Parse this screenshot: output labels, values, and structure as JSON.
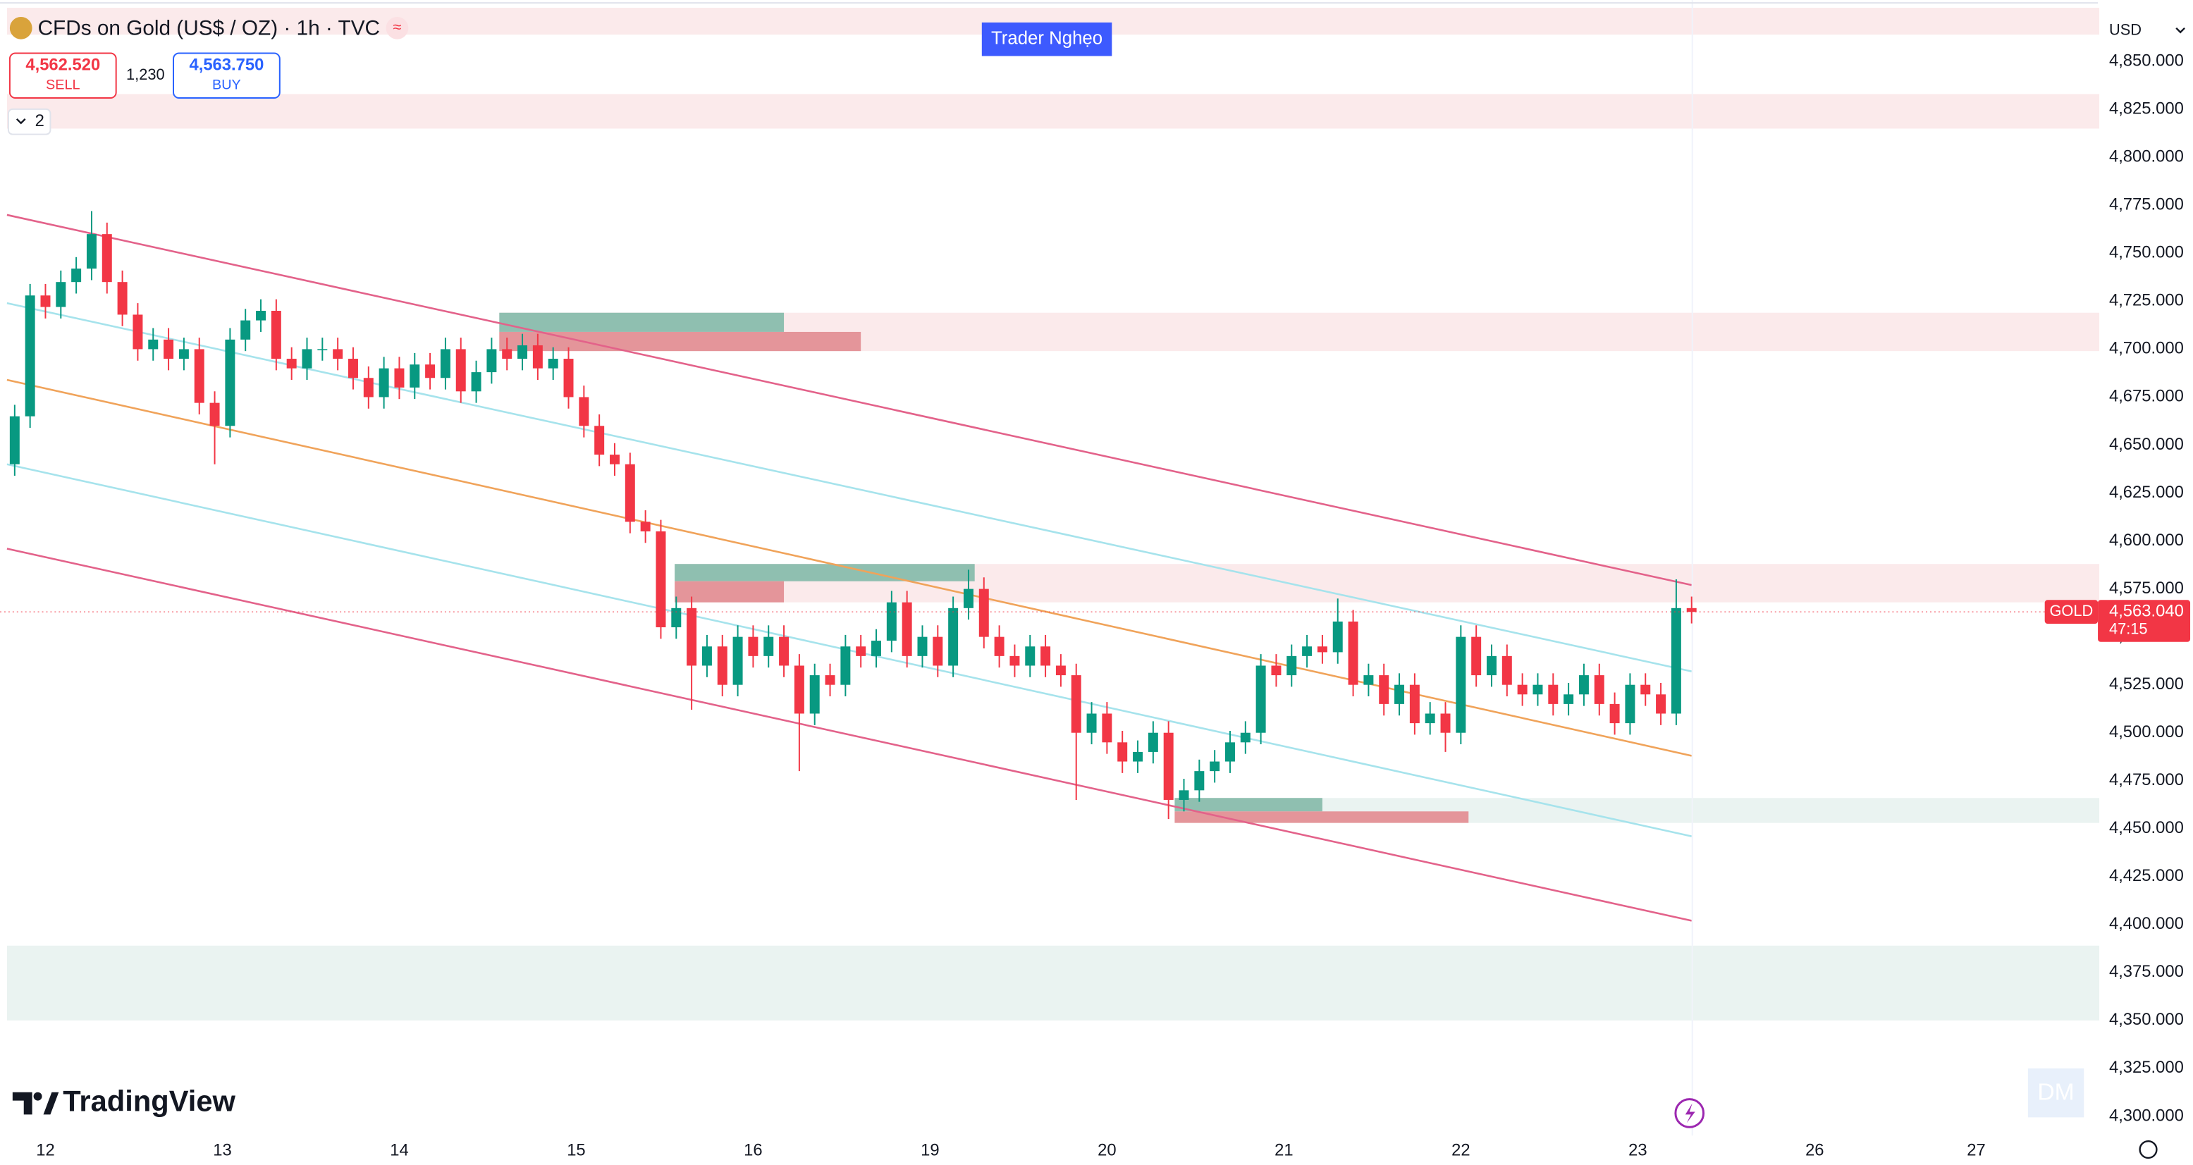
{
  "header": {
    "symbol": "CFDs on Gold (US$ / OZ) · 1h · TVC",
    "sell_price": "4,562.520",
    "sell_label": "SELL",
    "spread": "1,230",
    "buy_price": "4,563.750",
    "buy_label": "BUY",
    "indicators_count": "2"
  },
  "watermark": "Trader Nghẹo",
  "currency": "USD",
  "brand": "TradingView",
  "badge": "DM",
  "chart_data": {
    "type": "candlestick",
    "up_color": "#089981",
    "down_color": "#f23645",
    "grid": false,
    "open": [
      4640,
      4665,
      4728,
      4722,
      4735,
      4742,
      4760,
      4735,
      4718,
      4700,
      4705,
      4695,
      4700,
      4672,
      4660,
      4705,
      4715,
      4720,
      4695,
      4690,
      4700,
      4700,
      4695,
      4685,
      4675,
      4690,
      4680,
      4692,
      4685,
      4700,
      4678,
      4688,
      4700,
      4695,
      4702,
      4690,
      4695,
      4675,
      4660,
      4645,
      4640,
      4610,
      4605,
      4555,
      4565,
      4535,
      4545,
      4525,
      4550,
      4540,
      4550,
      4535,
      4510,
      4530,
      4525,
      4545,
      4540,
      4548,
      4568,
      4540,
      4550,
      4535,
      4565,
      4575,
      4550,
      4540,
      4535,
      4545,
      4535,
      4530,
      4500,
      4510,
      4495,
      4485,
      4490,
      4500,
      4465,
      4470,
      4480,
      4485,
      4495,
      4500,
      4535,
      4530,
      4540,
      4545,
      4542,
      4558,
      4525,
      4530,
      4515,
      4525,
      4505,
      4510,
      4500,
      4550,
      4530,
      4540,
      4525,
      4520,
      4525,
      4515,
      4520,
      4530,
      4515,
      4505,
      4525,
      4520,
      4510,
      4565
    ],
    "high": [
      4671,
      4734,
      4734,
      4741,
      4748,
      4772,
      4766,
      4741,
      4724,
      4711,
      4711,
      4706,
      4706,
      4678,
      4711,
      4721,
      4726,
      4726,
      4701,
      4706,
      4706,
      4706,
      4701,
      4691,
      4696,
      4696,
      4698,
      4698,
      4706,
      4706,
      4694,
      4706,
      4706,
      4708,
      4708,
      4701,
      4701,
      4681,
      4666,
      4651,
      4646,
      4616,
      4611,
      4571,
      4571,
      4551,
      4551,
      4556,
      4556,
      4556,
      4556,
      4541,
      4536,
      4536,
      4551,
      4551,
      4554,
      4574,
      4574,
      4556,
      4556,
      4571,
      4585,
      4581,
      4556,
      4546,
      4551,
      4551,
      4541,
      4536,
      4516,
      4516,
      4501,
      4496,
      4506,
      4506,
      4476,
      4486,
      4491,
      4501,
      4506,
      4541,
      4541,
      4546,
      4551,
      4551,
      4570,
      4564,
      4536,
      4536,
      4531,
      4531,
      4516,
      4516,
      4556,
      4556,
      4546,
      4546,
      4531,
      4531,
      4531,
      4526,
      4536,
      4536,
      4521,
      4531,
      4531,
      4526,
      4580,
      4571
    ],
    "low": [
      4634,
      4659,
      4716,
      4716,
      4729,
      4736,
      4729,
      4712,
      4694,
      4694,
      4689,
      4689,
      4666,
      4640,
      4654,
      4699,
      4709,
      4689,
      4684,
      4684,
      4694,
      4689,
      4679,
      4669,
      4669,
      4674,
      4674,
      4679,
      4679,
      4672,
      4672,
      4682,
      4689,
      4689,
      4684,
      4684,
      4669,
      4654,
      4639,
      4634,
      4604,
      4599,
      4549,
      4549,
      4512,
      4529,
      4519,
      4519,
      4534,
      4534,
      4529,
      4480,
      4504,
      4519,
      4519,
      4534,
      4534,
      4542,
      4534,
      4534,
      4529,
      4529,
      4559,
      4544,
      4534,
      4529,
      4529,
      4529,
      4524,
      4465,
      4494,
      4489,
      4479,
      4479,
      4484,
      4455,
      4459,
      4464,
      4474,
      4479,
      4489,
      4494,
      4524,
      4524,
      4534,
      4536,
      4536,
      4519,
      4519,
      4509,
      4509,
      4499,
      4499,
      4490,
      4494,
      4524,
      4524,
      4519,
      4514,
      4514,
      4509,
      4509,
      4514,
      4509,
      4499,
      4499,
      4514,
      4504,
      4504,
      4557
    ],
    "close": [
      4665,
      4728,
      4722,
      4735,
      4742,
      4760,
      4735,
      4718,
      4700,
      4705,
      4695,
      4700,
      4672,
      4660,
      4705,
      4715,
      4720,
      4695,
      4690,
      4700,
      4700,
      4695,
      4685,
      4675,
      4690,
      4680,
      4692,
      4685,
      4700,
      4678,
      4688,
      4700,
      4695,
      4702,
      4690,
      4695,
      4675,
      4660,
      4645,
      4640,
      4610,
      4605,
      4555,
      4565,
      4535,
      4545,
      4525,
      4550,
      4540,
      4550,
      4535,
      4510,
      4530,
      4525,
      4545,
      4540,
      4548,
      4568,
      4540,
      4550,
      4535,
      4565,
      4575,
      4550,
      4540,
      4535,
      4545,
      4535,
      4530,
      4500,
      4510,
      4495,
      4485,
      4490,
      4500,
      4465,
      4470,
      4480,
      4485,
      4495,
      4500,
      4535,
      4530,
      4540,
      4545,
      4542,
      4558,
      4525,
      4530,
      4515,
      4525,
      4505,
      4510,
      4500,
      4550,
      4530,
      4540,
      4525,
      4520,
      4525,
      4515,
      4520,
      4530,
      4515,
      4505,
      4525,
      4520,
      4510,
      4565,
      4563
    ],
    "xlim": [
      0,
      136
    ],
    "xticks": [
      {
        "value": 2.5,
        "label": "12"
      },
      {
        "value": 14,
        "label": "13"
      },
      {
        "value": 25.5,
        "label": "14"
      },
      {
        "value": 37,
        "label": "15"
      },
      {
        "value": 48.5,
        "label": "16"
      },
      {
        "value": 60,
        "label": "19"
      },
      {
        "value": 71.5,
        "label": "20"
      },
      {
        "value": 83,
        "label": "21"
      },
      {
        "value": 94.5,
        "label": "22"
      },
      {
        "value": 106,
        "label": "23"
      },
      {
        "value": 117.5,
        "label": "26"
      },
      {
        "value": 128,
        "label": "27"
      }
    ],
    "ylim": [
      4290,
      4882
    ],
    "yticks": [
      {
        "value": 4850,
        "label": "4,850.000"
      },
      {
        "value": 4825,
        "label": "4,825.000"
      },
      {
        "value": 4800,
        "label": "4,800.000"
      },
      {
        "value": 4775,
        "label": "4,775.000"
      },
      {
        "value": 4750,
        "label": "4,750.000"
      },
      {
        "value": 4725,
        "label": "4,725.000"
      },
      {
        "value": 4700,
        "label": "4,700.000"
      },
      {
        "value": 4675,
        "label": "4,675.000"
      },
      {
        "value": 4650,
        "label": "4,650.000"
      },
      {
        "value": 4625,
        "label": "4,625.000"
      },
      {
        "value": 4600,
        "label": "4,600.000"
      },
      {
        "value": 4575,
        "label": "4,575.000"
      },
      {
        "value": 4550,
        "label": "4,550.000"
      },
      {
        "value": 4525,
        "label": "4,525.000"
      },
      {
        "value": 4500,
        "label": "4,500.000"
      },
      {
        "value": 4475,
        "label": "4,475.000"
      },
      {
        "value": 4450,
        "label": "4,450.000"
      },
      {
        "value": 4425,
        "label": "4,425.000"
      },
      {
        "value": 4400,
        "label": "4,400.000"
      },
      {
        "value": 4375,
        "label": "4,375.000"
      },
      {
        "value": 4350,
        "label": "4,350.000"
      },
      {
        "value": 4325,
        "label": "4,325.000"
      },
      {
        "value": 4300,
        "label": "4,300.000"
      }
    ],
    "last_price": {
      "symbol": "GOLD",
      "value": 4563.04,
      "label": "4,563.040",
      "countdown": "47:15"
    },
    "zones": [
      {
        "price_range": [
          4864,
          4878
        ],
        "bar_range": [
          0,
          136
        ],
        "color": "#fbeaeb"
      },
      {
        "price_range": [
          4815,
          4833
        ],
        "bar_range": [
          0,
          136
        ],
        "color": "#fbeaeb"
      },
      {
        "price_range": [
          4699,
          4719
        ],
        "bar_range": [
          32,
          136
        ],
        "color": "#fbeaeb"
      },
      {
        "price_range": [
          4568,
          4588
        ],
        "bar_range": [
          43.4,
          136
        ],
        "color": "#fbeaeb"
      },
      {
        "price_range": [
          4453,
          4466
        ],
        "bar_range": [
          75.9,
          136
        ],
        "color": "#eaf3f1"
      },
      {
        "price_range": [
          4350,
          4389
        ],
        "bar_range": [
          0,
          136
        ],
        "color": "#eaf3f1"
      },
      {
        "price_range": [
          4709,
          4719
        ],
        "bar_range": [
          32,
          50.5
        ],
        "color": "#8fbfb0"
      },
      {
        "price_range": [
          4699,
          4709
        ],
        "bar_range": [
          32,
          55.5
        ],
        "color": "#e4959a"
      },
      {
        "price_range": [
          4579,
          4588
        ],
        "bar_range": [
          43.4,
          62.9
        ],
        "color": "#8fbfb0"
      },
      {
        "price_range": [
          4568,
          4579
        ],
        "bar_range": [
          43.4,
          50.5
        ],
        "color": "#e4959a"
      },
      {
        "price_range": [
          4459,
          4466
        ],
        "bar_range": [
          75.9,
          85.5
        ],
        "color": "#8fbfb0"
      },
      {
        "price_range": [
          4453,
          4459
        ],
        "bar_range": [
          75.9,
          95
        ],
        "color": "#e4959a"
      }
    ],
    "lines": [
      {
        "from": [
          0,
          4770
        ],
        "to": [
          109.5,
          4577
        ],
        "color": "#e3628a"
      },
      {
        "from": [
          0,
          4724
        ],
        "to": [
          109.5,
          4532
        ],
        "color": "#a6e3ec"
      },
      {
        "from": [
          0,
          4684
        ],
        "to": [
          109.5,
          4488
        ],
        "color": "#f0a35a"
      },
      {
        "from": [
          0,
          4640
        ],
        "to": [
          109.5,
          4446
        ],
        "color": "#a6e3ec"
      },
      {
        "from": [
          0,
          4596
        ],
        "to": [
          109.5,
          4402
        ],
        "color": "#e3628a"
      }
    ]
  }
}
